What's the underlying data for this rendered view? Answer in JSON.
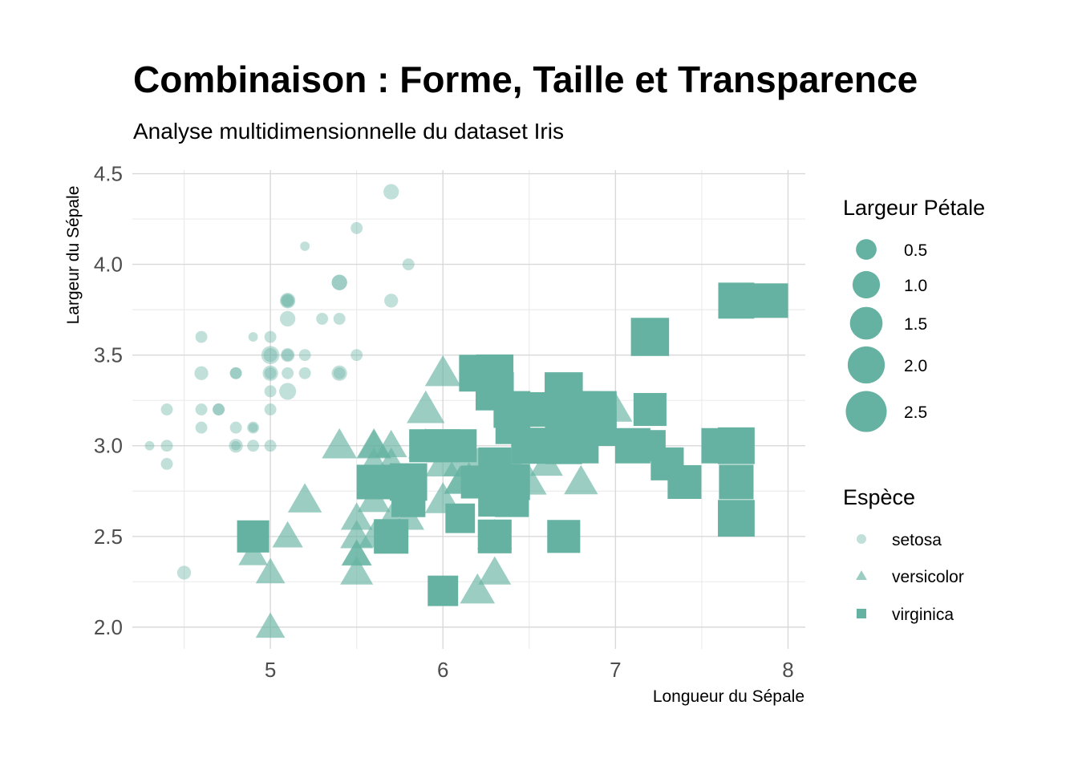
{
  "chart_data": {
    "type": "scatter",
    "title": "Combinaison : Forme, Taille et Transparence",
    "subtitle": "Analyse multidimensionnelle du dataset Iris",
    "xlabel": "Longueur du Sépale",
    "ylabel": "Largeur du Sépale",
    "xlim": [
      4.2,
      8.1
    ],
    "ylim": [
      1.88,
      4.52
    ],
    "x_ticks": [
      5,
      6,
      7,
      8
    ],
    "y_ticks": [
      2.0,
      2.5,
      3.0,
      3.5,
      4.0,
      4.5
    ],
    "x_tick_labels": [
      "5",
      "6",
      "7",
      "8"
    ],
    "y_tick_labels": [
      "2.0",
      "2.5",
      "3.0",
      "3.5",
      "4.0",
      "4.5"
    ],
    "grid": true,
    "color": "#66b2a2",
    "size_legend": {
      "title": "Largeur Pétale",
      "values": [
        0.5,
        1.0,
        1.5,
        2.0,
        2.5
      ],
      "labels": [
        "0.5",
        "1.0",
        "1.5",
        "2.0",
        "2.5"
      ]
    },
    "shape_legend": {
      "title": "Espèce",
      "entries": [
        {
          "name": "setosa",
          "shape": "circle",
          "alpha": 0.4
        },
        {
          "name": "versicolor",
          "shape": "triangle",
          "alpha": 0.65
        },
        {
          "name": "virginica",
          "shape": "square",
          "alpha": 1.0
        }
      ]
    },
    "series": [
      {
        "name": "setosa",
        "shape": "circle",
        "alpha": 0.4,
        "points": [
          [
            5.1,
            3.5,
            0.2
          ],
          [
            4.9,
            3.0,
            0.2
          ],
          [
            4.7,
            3.2,
            0.2
          ],
          [
            4.6,
            3.1,
            0.2
          ],
          [
            5.0,
            3.6,
            0.2
          ],
          [
            5.4,
            3.9,
            0.4
          ],
          [
            4.6,
            3.4,
            0.3
          ],
          [
            5.0,
            3.4,
            0.2
          ],
          [
            4.4,
            2.9,
            0.2
          ],
          [
            4.9,
            3.1,
            0.1
          ],
          [
            5.4,
            3.7,
            0.2
          ],
          [
            4.8,
            3.4,
            0.2
          ],
          [
            4.8,
            3.0,
            0.1
          ],
          [
            4.3,
            3.0,
            0.1
          ],
          [
            5.8,
            4.0,
            0.2
          ],
          [
            5.7,
            4.4,
            0.4
          ],
          [
            5.4,
            3.9,
            0.4
          ],
          [
            5.1,
            3.5,
            0.3
          ],
          [
            5.7,
            3.8,
            0.3
          ],
          [
            5.1,
            3.8,
            0.3
          ],
          [
            5.4,
            3.4,
            0.2
          ],
          [
            5.1,
            3.7,
            0.4
          ],
          [
            4.6,
            3.6,
            0.2
          ],
          [
            5.1,
            3.3,
            0.5
          ],
          [
            4.8,
            3.4,
            0.2
          ],
          [
            5.0,
            3.0,
            0.2
          ],
          [
            5.0,
            3.4,
            0.4
          ],
          [
            5.2,
            3.5,
            0.2
          ],
          [
            5.2,
            3.4,
            0.2
          ],
          [
            4.7,
            3.2,
            0.2
          ],
          [
            4.8,
            3.1,
            0.2
          ],
          [
            5.4,
            3.4,
            0.4
          ],
          [
            5.2,
            4.1,
            0.1
          ],
          [
            5.5,
            4.2,
            0.2
          ],
          [
            4.9,
            3.1,
            0.2
          ],
          [
            5.0,
            3.2,
            0.2
          ],
          [
            5.5,
            3.5,
            0.2
          ],
          [
            4.9,
            3.6,
            0.1
          ],
          [
            4.4,
            3.0,
            0.2
          ],
          [
            5.1,
            3.4,
            0.2
          ],
          [
            5.0,
            3.5,
            0.3
          ],
          [
            4.5,
            2.3,
            0.3
          ],
          [
            4.4,
            3.2,
            0.2
          ],
          [
            5.0,
            3.5,
            0.6
          ],
          [
            5.1,
            3.8,
            0.4
          ],
          [
            4.8,
            3.0,
            0.3
          ],
          [
            5.1,
            3.8,
            0.2
          ],
          [
            4.6,
            3.2,
            0.2
          ],
          [
            5.3,
            3.7,
            0.2
          ],
          [
            5.0,
            3.3,
            0.2
          ]
        ]
      },
      {
        "name": "versicolor",
        "shape": "triangle",
        "alpha": 0.65,
        "points": [
          [
            7.0,
            3.2,
            1.4
          ],
          [
            6.4,
            3.2,
            1.5
          ],
          [
            6.9,
            3.1,
            1.5
          ],
          [
            5.5,
            2.3,
            1.3
          ],
          [
            6.5,
            2.8,
            1.5
          ],
          [
            5.7,
            2.8,
            1.3
          ],
          [
            6.3,
            3.3,
            1.6
          ],
          [
            4.9,
            2.4,
            1.0
          ],
          [
            6.6,
            2.9,
            1.3
          ],
          [
            5.2,
            2.7,
            1.4
          ],
          [
            5.0,
            2.0,
            1.0
          ],
          [
            5.9,
            3.0,
            1.5
          ],
          [
            6.0,
            2.2,
            1.0
          ],
          [
            6.1,
            2.9,
            1.4
          ],
          [
            5.6,
            2.9,
            1.3
          ],
          [
            6.7,
            3.1,
            1.4
          ],
          [
            5.6,
            3.0,
            1.5
          ],
          [
            5.8,
            2.7,
            1.0
          ],
          [
            6.2,
            2.2,
            1.5
          ],
          [
            5.6,
            2.5,
            1.1
          ],
          [
            5.9,
            3.2,
            1.8
          ],
          [
            6.1,
            2.8,
            1.3
          ],
          [
            6.3,
            2.5,
            1.5
          ],
          [
            6.1,
            2.8,
            1.2
          ],
          [
            6.4,
            2.9,
            1.3
          ],
          [
            6.6,
            3.0,
            1.4
          ],
          [
            6.8,
            2.8,
            1.4
          ],
          [
            6.7,
            3.0,
            1.7
          ],
          [
            6.0,
            2.9,
            1.5
          ],
          [
            5.7,
            2.6,
            1.0
          ],
          [
            5.5,
            2.4,
            1.1
          ],
          [
            5.5,
            2.4,
            1.0
          ],
          [
            5.8,
            2.7,
            1.2
          ],
          [
            6.0,
            2.7,
            1.6
          ],
          [
            5.4,
            3.0,
            1.5
          ],
          [
            6.0,
            3.4,
            1.6
          ],
          [
            6.7,
            3.1,
            1.5
          ],
          [
            6.3,
            2.3,
            1.3
          ],
          [
            5.6,
            3.0,
            1.3
          ],
          [
            5.5,
            2.5,
            1.3
          ],
          [
            5.5,
            2.6,
            1.2
          ],
          [
            6.1,
            3.0,
            1.4
          ],
          [
            5.8,
            2.6,
            1.2
          ],
          [
            5.0,
            2.3,
            1.0
          ],
          [
            5.6,
            2.7,
            1.3
          ],
          [
            5.7,
            3.0,
            1.2
          ],
          [
            5.7,
            2.9,
            1.3
          ],
          [
            6.2,
            2.9,
            1.3
          ],
          [
            5.1,
            2.5,
            1.1
          ],
          [
            5.7,
            2.8,
            1.3
          ]
        ]
      },
      {
        "name": "virginica",
        "shape": "square",
        "alpha": 1.0,
        "points": [
          [
            6.3,
            3.3,
            2.5
          ],
          [
            5.8,
            2.7,
            1.9
          ],
          [
            7.1,
            3.0,
            2.1
          ],
          [
            6.3,
            2.9,
            1.8
          ],
          [
            6.5,
            3.0,
            2.2
          ],
          [
            7.6,
            3.0,
            2.1
          ],
          [
            4.9,
            2.5,
            1.7
          ],
          [
            7.3,
            2.9,
            1.8
          ],
          [
            6.7,
            2.5,
            1.8
          ],
          [
            7.2,
            3.6,
            2.5
          ],
          [
            6.5,
            3.2,
            2.0
          ],
          [
            6.4,
            2.7,
            1.9
          ],
          [
            6.8,
            3.0,
            2.1
          ],
          [
            5.7,
            2.5,
            2.0
          ],
          [
            5.8,
            2.8,
            2.4
          ],
          [
            6.4,
            3.2,
            2.3
          ],
          [
            6.5,
            3.0,
            1.8
          ],
          [
            7.7,
            3.8,
            2.2
          ],
          [
            7.7,
            2.6,
            2.3
          ],
          [
            6.0,
            2.2,
            1.5
          ],
          [
            6.9,
            3.2,
            2.3
          ],
          [
            5.6,
            2.8,
            2.0
          ],
          [
            7.7,
            2.8,
            2.0
          ],
          [
            6.3,
            2.7,
            1.8
          ],
          [
            6.7,
            3.3,
            2.1
          ],
          [
            7.2,
            3.2,
            1.8
          ],
          [
            6.2,
            2.8,
            1.8
          ],
          [
            6.1,
            3.0,
            1.8
          ],
          [
            6.4,
            2.8,
            2.1
          ],
          [
            7.2,
            3.0,
            1.6
          ],
          [
            7.4,
            2.8,
            1.9
          ],
          [
            7.9,
            3.8,
            2.0
          ],
          [
            6.4,
            2.8,
            2.2
          ],
          [
            6.3,
            2.8,
            1.5
          ],
          [
            6.1,
            2.6,
            1.4
          ],
          [
            7.7,
            3.0,
            2.3
          ],
          [
            6.3,
            3.4,
            2.4
          ],
          [
            6.4,
            3.1,
            1.8
          ],
          [
            6.0,
            3.0,
            1.8
          ],
          [
            6.9,
            3.1,
            2.1
          ],
          [
            6.7,
            3.1,
            2.4
          ],
          [
            6.9,
            3.1,
            2.3
          ],
          [
            5.8,
            2.7,
            1.9
          ],
          [
            6.8,
            3.2,
            2.3
          ],
          [
            6.7,
            3.3,
            2.5
          ],
          [
            6.7,
            3.0,
            2.3
          ],
          [
            6.3,
            2.5,
            1.9
          ],
          [
            6.5,
            3.0,
            2.0
          ],
          [
            6.2,
            3.4,
            2.3
          ],
          [
            5.9,
            3.0,
            1.8
          ]
        ]
      }
    ]
  }
}
